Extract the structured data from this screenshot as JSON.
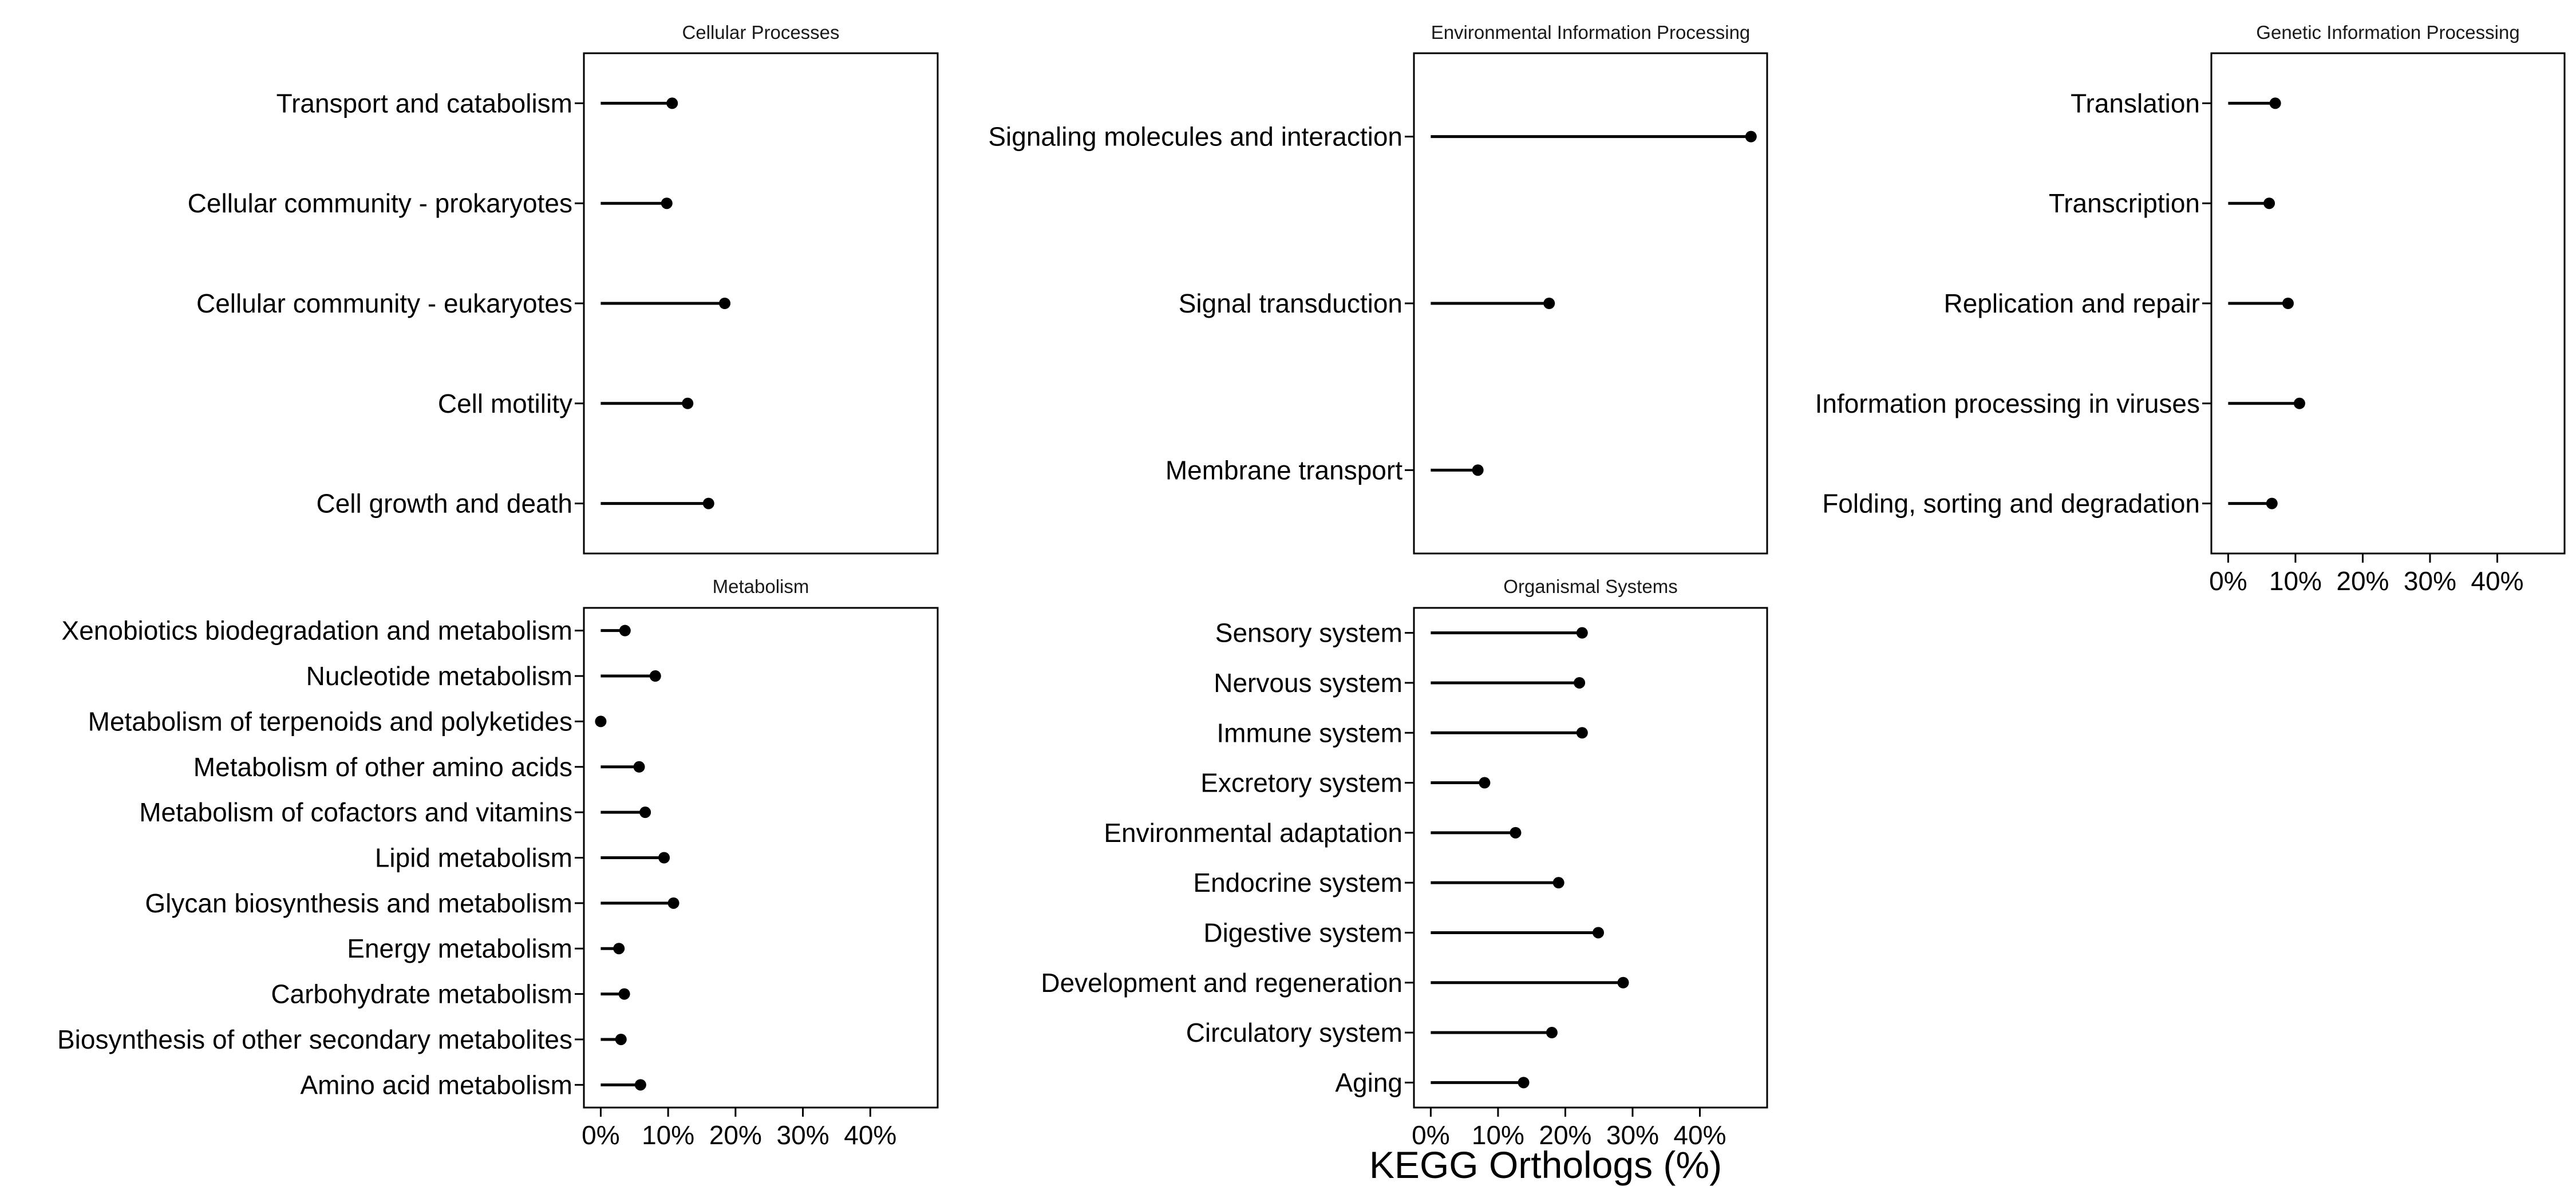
{
  "chart_data": {
    "type": "lollipop",
    "xlabel": "KEGG Orthologs (%)",
    "xlim": [
      -2.5,
      50
    ],
    "xticks": [
      0,
      10,
      20,
      30,
      40
    ],
    "xtick_labels": [
      "0%",
      "10%",
      "20%",
      "30%",
      "40%"
    ],
    "panels": [
      {
        "title": "Cellular Processes",
        "categories": [
          "Transport and catabolism",
          "Cellular community - prokaryotes",
          "Cellular community - eukaryotes",
          "Cell motility",
          "Cell growth and death"
        ],
        "values": [
          10.6,
          9.8,
          18.4,
          12.9,
          16.0
        ]
      },
      {
        "title": "Environmental Information Processing",
        "categories": [
          "Signaling molecules and interaction",
          "Signal transduction",
          "Membrane transport"
        ],
        "values": [
          47.6,
          17.6,
          7.0
        ]
      },
      {
        "title": "Genetic Information Processing",
        "categories": [
          "Translation",
          "Transcription",
          "Replication and repair",
          "Information processing in viruses",
          "Folding, sorting and degradation"
        ],
        "values": [
          7.0,
          6.1,
          8.9,
          10.6,
          6.5
        ]
      },
      {
        "title": "Metabolism",
        "categories": [
          "Xenobiotics biodegradation and metabolism",
          "Nucleotide metabolism",
          "Metabolism of terpenoids and polyketides",
          "Metabolism of other amino acids",
          "Metabolism of cofactors and vitamins",
          "Lipid metabolism",
          "Glycan biosynthesis and metabolism",
          "Energy metabolism",
          "Carbohydrate metabolism",
          "Biosynthesis of other secondary metabolites",
          "Amino acid metabolism"
        ],
        "values": [
          3.6,
          8.1,
          0.0,
          5.7,
          6.6,
          9.4,
          10.8,
          2.7,
          3.5,
          3.0,
          5.9
        ]
      },
      {
        "title": "Organismal Systems",
        "categories": [
          "Sensory system",
          "Nervous system",
          "Immune system",
          "Excretory system",
          "Environmental adaptation",
          "Endocrine system",
          "Digestive system",
          "Development and regeneration",
          "Circulatory system",
          "Aging"
        ],
        "values": [
          22.5,
          22.1,
          22.5,
          8.0,
          12.6,
          19.0,
          24.9,
          28.6,
          18.0,
          13.8
        ]
      }
    ]
  }
}
